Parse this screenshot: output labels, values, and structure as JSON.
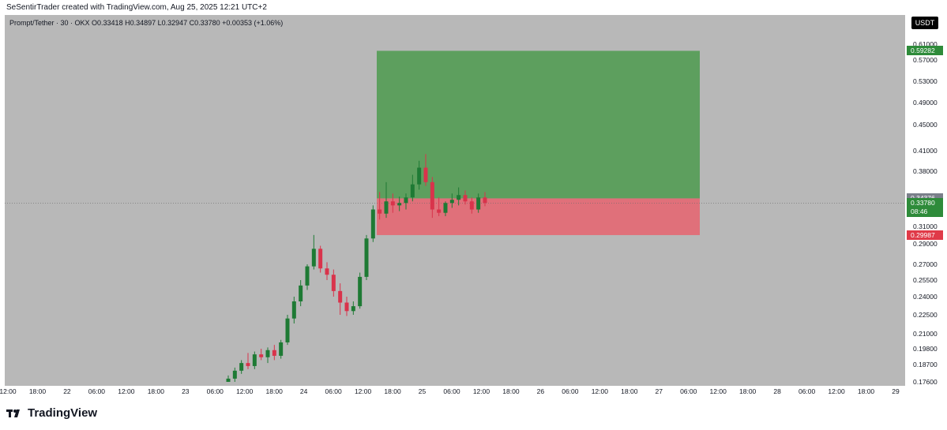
{
  "header": {
    "attribution": "SeSentirTrader created with TradingView.com, Aug 25, 2025 12:21 UTC+2"
  },
  "symbol_info": {
    "text": "Prompt/Tether · 30 · OKX  O0.33418  H0.34897  L0.32947  C0.33780  +0.00353 (+1.06%)"
  },
  "unit_button": "USDT",
  "footer": {
    "brand": "TradingView",
    "logo_icon": "tradingview-logo-icon"
  },
  "colors": {
    "background": "#b8b8b8",
    "up": "#1e7a34",
    "down": "#d9334b",
    "profit_zone": "#5d9f5e",
    "loss_zone": "#e0707a",
    "target_tag": "#2e8b3a",
    "stop_tag": "#e03a48",
    "current_tag": "#2e8b3a",
    "entry_tag": "#7a7f8a"
  },
  "chart_data": {
    "type": "candlestick",
    "symbol": "Prompt/Tether",
    "interval": "30",
    "exchange": "OKX",
    "ohlc_last": {
      "open": 0.33418,
      "high": 0.34897,
      "low": 0.32947,
      "close": 0.3378,
      "change": 0.00353,
      "change_pct": 1.06
    },
    "y_ticks": [
      "0.61000",
      "0.57000",
      "0.53000",
      "0.49000",
      "0.45000",
      "0.41000",
      "0.38000",
      "0.34376",
      "0.33780",
      "0.31000",
      "0.29000",
      "0.27000",
      "0.25500",
      "0.24000",
      "0.22500",
      "0.21000",
      "0.19800",
      "0.18700",
      "0.17600"
    ],
    "y_tick_values": [
      0.61,
      0.57,
      0.53,
      0.49,
      0.45,
      0.41,
      0.38,
      0.31,
      0.29,
      0.27,
      0.255,
      0.24,
      0.225,
      0.21,
      0.198,
      0.187,
      0.176
    ],
    "x_ticks": [
      "12:00",
      "18:00",
      "22",
      "06:00",
      "12:00",
      "18:00",
      "23",
      "06:00",
      "12:00",
      "18:00",
      "24",
      "06:00",
      "12:00",
      "18:00",
      "25",
      "06:00",
      "12:00",
      "18:00",
      "26",
      "06:00",
      "12:00",
      "18:00",
      "27",
      "06:00",
      "12:00",
      "18:00",
      "28",
      "06:00",
      "12:00",
      "18:00",
      "29"
    ],
    "position": {
      "side": "long",
      "entry": 0.34376,
      "target": 0.59282,
      "stop": 0.29987,
      "start_x": "24 12:00",
      "end_x": "27 06:00"
    },
    "current_price": {
      "value": "0.33780",
      "countdown": "08:46"
    },
    "price_labels": {
      "target": "0.59282",
      "entry": "0.34376",
      "stop": "0.29987"
    },
    "candles": [
      [
        0.176,
        0.18,
        0.174,
        0.178
      ],
      [
        0.178,
        0.185,
        0.176,
        0.183
      ],
      [
        0.183,
        0.19,
        0.181,
        0.188
      ],
      [
        0.188,
        0.195,
        0.184,
        0.186
      ],
      [
        0.186,
        0.196,
        0.184,
        0.194
      ],
      [
        0.194,
        0.198,
        0.19,
        0.192
      ],
      [
        0.192,
        0.199,
        0.188,
        0.197
      ],
      [
        0.197,
        0.201,
        0.19,
        0.193
      ],
      [
        0.193,
        0.205,
        0.191,
        0.203
      ],
      [
        0.203,
        0.225,
        0.201,
        0.222
      ],
      [
        0.222,
        0.24,
        0.218,
        0.236
      ],
      [
        0.236,
        0.255,
        0.232,
        0.25
      ],
      [
        0.25,
        0.27,
        0.246,
        0.268
      ],
      [
        0.268,
        0.3,
        0.265,
        0.285
      ],
      [
        0.285,
        0.288,
        0.262,
        0.266
      ],
      [
        0.266,
        0.272,
        0.255,
        0.26
      ],
      [
        0.26,
        0.265,
        0.24,
        0.245
      ],
      [
        0.245,
        0.252,
        0.225,
        0.235
      ],
      [
        0.235,
        0.24,
        0.224,
        0.228
      ],
      [
        0.228,
        0.236,
        0.225,
        0.232
      ],
      [
        0.232,
        0.262,
        0.23,
        0.258
      ],
      [
        0.258,
        0.3,
        0.255,
        0.296
      ],
      [
        0.296,
        0.335,
        0.292,
        0.33
      ],
      [
        0.33,
        0.352,
        0.318,
        0.325
      ],
      [
        0.325,
        0.365,
        0.32,
        0.34
      ],
      [
        0.34,
        0.35,
        0.326,
        0.335
      ],
      [
        0.335,
        0.346,
        0.328,
        0.338
      ],
      [
        0.338,
        0.35,
        0.33,
        0.345
      ],
      [
        0.345,
        0.375,
        0.34,
        0.362
      ],
      [
        0.362,
        0.395,
        0.355,
        0.385
      ],
      [
        0.385,
        0.405,
        0.36,
        0.365
      ],
      [
        0.365,
        0.372,
        0.32,
        0.33
      ],
      [
        0.33,
        0.345,
        0.322,
        0.326
      ],
      [
        0.326,
        0.34,
        0.322,
        0.338
      ],
      [
        0.338,
        0.35,
        0.332,
        0.342
      ],
      [
        0.342,
        0.358,
        0.335,
        0.348
      ],
      [
        0.348,
        0.354,
        0.336,
        0.34
      ],
      [
        0.34,
        0.345,
        0.325,
        0.33
      ],
      [
        0.33,
        0.35,
        0.326,
        0.345
      ],
      [
        0.345,
        0.352,
        0.334,
        0.338
      ]
    ]
  }
}
